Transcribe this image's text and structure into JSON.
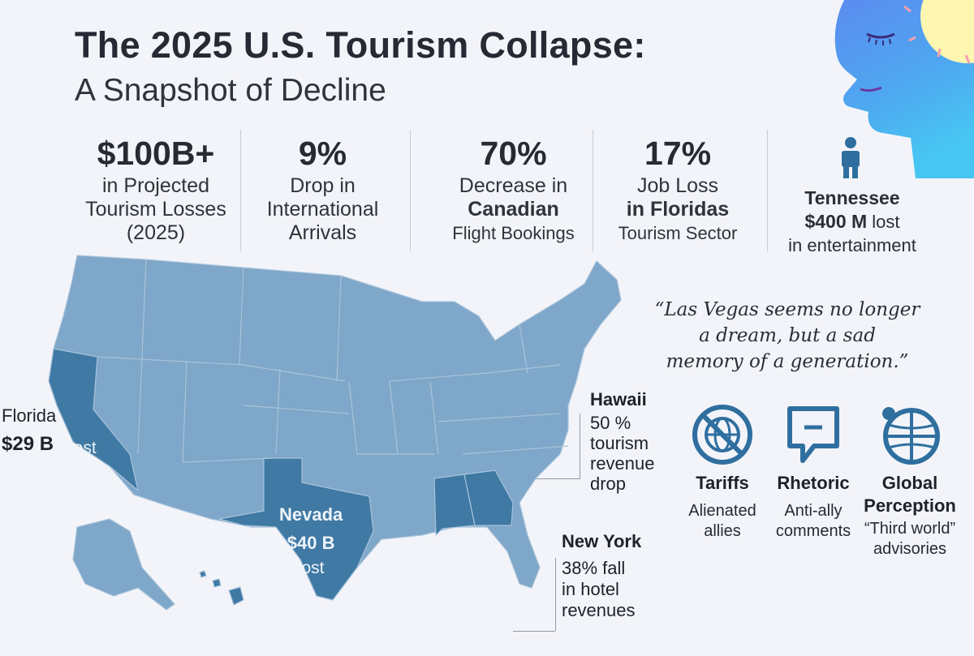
{
  "header": {
    "title": "The 2025 U.S. Tourism Collapse:",
    "subtitle": "A Snapshot of Decline"
  },
  "stats": [
    {
      "value": "$100B+",
      "line1": "in Projected",
      "line2": "Tourism Losses",
      "line3": "(2025)"
    },
    {
      "value": "9%",
      "line1": "Drop in",
      "line2": "International",
      "line3": "Arrivals"
    },
    {
      "value": "70%",
      "line1": "Decrease in",
      "line2": "Canadian",
      "line3": "Flight Bookings"
    },
    {
      "value": "17%",
      "line1": "Job Loss",
      "line2": "in Floridas",
      "line3": "Tourism Sector"
    }
  ],
  "tennessee": {
    "state": "Tennessee",
    "amount": "$400 M",
    "lost": "lost",
    "detail": "in entertainment"
  },
  "map_labels": {
    "florida": {
      "state": "Florida",
      "amount": "$29 B",
      "lost": "lost"
    },
    "nevada": {
      "state": "Nevada",
      "amount": "$40 B",
      "lost": "lost"
    },
    "hawaii": {
      "state": "Hawaii",
      "pct": "50 %",
      "l1": "tourism",
      "l2": "revenue",
      "l3": "drop"
    },
    "new_york": {
      "state": "New York",
      "pct": "38%",
      "l1": "fall",
      "l2": "in hotel",
      "l3": "revenues"
    }
  },
  "quote": {
    "l1": "“Las Vegas seems no longer",
    "l2": "a dream, but a sad",
    "l3": "memory of a generation.”"
  },
  "causes": [
    {
      "name": "Tariffs",
      "desc1": "Alienated",
      "desc2": "allies",
      "desc3": "",
      "icon": "no-globe-icon"
    },
    {
      "name": "Rhetoric",
      "desc1": "Anti-ally",
      "desc2": "comments",
      "desc3": "",
      "icon": "speech-bubble-icon"
    },
    {
      "name": "Global",
      "name2": "Perception",
      "desc1": "“Third world”",
      "desc2": "advisories",
      "desc3": "",
      "icon": "globe-icon"
    }
  ],
  "colors": {
    "background": "#f3f4f9",
    "map_light": "#7ea7c9",
    "map_dark": "#3f79a4",
    "map_border": "#a9c3da",
    "icon": "#2f6f9f"
  }
}
